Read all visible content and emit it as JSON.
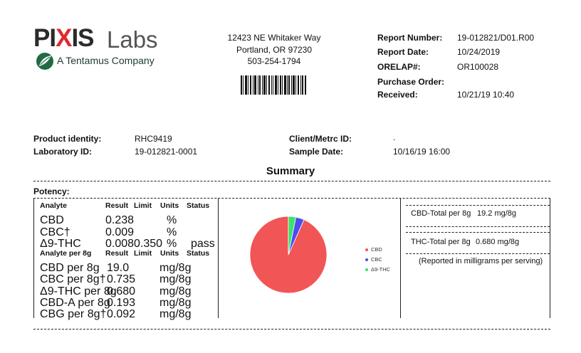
{
  "logo": {
    "brand_part1": "PI",
    "brand_x": "X",
    "brand_part2": "IS",
    "brand_labs": "Labs",
    "tagline": "A Tentamus Company"
  },
  "address": {
    "line1": "12423 NE Whitaker Way",
    "line2": "Portland, OR 97230",
    "line3": "503-254-1794"
  },
  "report": {
    "number_label": "Report Number:",
    "number": "19-012821/D01.R00",
    "date_label": "Report Date:",
    "date": "10/24/2019",
    "orelap_label": "ORELAP#:",
    "orelap": "OR100028",
    "po_label": "Purchase Order:",
    "po": "",
    "received_label": "Received:",
    "received": "10/21/19 10:40"
  },
  "product": {
    "identity_label": "Product identity:",
    "identity": "RHC9419",
    "labid_label": "Laboratory ID:",
    "labid": "19-012821-0001",
    "client_label": "Client/Metrc ID:",
    "client": ".",
    "sample_label": "Sample Date:",
    "sample": "10/16/19 16:00"
  },
  "summary_title": "Summary",
  "potency_title": "Potency:",
  "table1": {
    "headers": [
      "Analyte",
      "Result",
      "Limit",
      "Units",
      "Status"
    ],
    "rows": [
      [
        "CBD",
        "0.238",
        "",
        "%",
        ""
      ],
      [
        "CBC†",
        "0.009",
        "",
        "%",
        ""
      ],
      [
        "Δ9-THC",
        "0.008",
        "0.350",
        "%",
        "pass"
      ]
    ]
  },
  "table2": {
    "headers": [
      "Analyte per 8g",
      "Result",
      "Limit",
      "Units",
      "Status"
    ],
    "rows": [
      [
        "CBD per 8g",
        "19.0",
        "",
        "mg/8g",
        ""
      ],
      [
        "CBC per 8g†",
        "0.735",
        "",
        "mg/8g",
        ""
      ],
      [
        "Δ9-THC per 8g",
        "0.680",
        "",
        "mg/8g",
        ""
      ],
      [
        "CBD-A per 8g",
        "0.193",
        "",
        "mg/8g",
        ""
      ],
      [
        "CBG per 8g†",
        "0.092",
        "",
        "mg/8g",
        ""
      ]
    ]
  },
  "chart_data": {
    "type": "pie",
    "categories": [
      "CBD",
      "CBC",
      "Δ9-THC"
    ],
    "values": [
      0.238,
      0.009,
      0.008
    ],
    "colors": [
      "#f25555",
      "#4b4bf0",
      "#3ee06a"
    ],
    "legend_position": "right"
  },
  "totals": {
    "cbd_label": "CBD-Total per 8g",
    "cbd_value": "19.2 mg/8g",
    "thc_label": "THC-Total per 8g",
    "thc_value": "0.680 mg/8g",
    "note": "(Reported in milligrams per serving)"
  }
}
